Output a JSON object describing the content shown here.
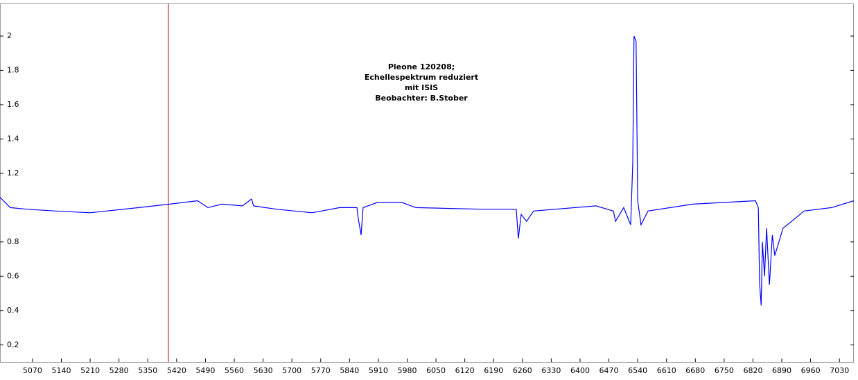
{
  "chart_data": {
    "type": "line",
    "annotation": [
      "Pleone 120208;",
      "Echellespektrum reduziert",
      "mit ISIS",
      "Beobachter: B.Stober"
    ],
    "x": [
      4991,
      5016,
      5058,
      5126,
      5210,
      5328,
      5403,
      5471,
      5496,
      5530,
      5580,
      5602,
      5607,
      5664,
      5749,
      5816,
      5858,
      5861,
      5868,
      5873,
      5908,
      5967,
      6001,
      6169,
      6245,
      6250,
      6257,
      6270,
      6287,
      6439,
      6481,
      6486,
      6506,
      6523,
      6528,
      6531,
      6536,
      6540,
      6548,
      6565,
      6674,
      6826,
      6833,
      6836,
      6840,
      6843,
      6848,
      6853,
      6860,
      6867,
      6873,
      6893,
      6919,
      6944,
      7011,
      7065
    ],
    "series": [
      {
        "name": "Pleone",
        "color": "#0000ff",
        "values": [
          1.06,
          1.0,
          0.99,
          0.98,
          0.97,
          1.0,
          1.02,
          1.04,
          1.0,
          1.02,
          1.01,
          1.05,
          1.01,
          0.99,
          0.97,
          1.0,
          1.0,
          0.94,
          0.84,
          1.0,
          1.03,
          1.03,
          1.0,
          0.99,
          0.99,
          0.82,
          0.96,
          0.92,
          0.98,
          1.01,
          0.98,
          0.92,
          1.0,
          0.9,
          1.26,
          2.0,
          1.97,
          1.04,
          0.9,
          0.98,
          1.02,
          1.04,
          1.0,
          0.56,
          0.43,
          0.8,
          0.6,
          0.88,
          0.55,
          0.84,
          0.72,
          0.88,
          0.93,
          0.98,
          1.0,
          1.04
        ]
      }
    ],
    "cursor_x": 5400,
    "cursor_color": "#c00000",
    "xlim": [
      4991,
      7065
    ],
    "xticks": [
      5070,
      5140,
      5210,
      5280,
      5350,
      5420,
      5490,
      5560,
      5630,
      5700,
      5770,
      5840,
      5910,
      5980,
      6050,
      6120,
      6190,
      6260,
      6330,
      6400,
      6470,
      6540,
      6610,
      6680,
      6750,
      6820,
      6890,
      6960,
      7030
    ],
    "ylim": [
      0.1,
      2.19
    ],
    "yticks": [
      0.2,
      0.4,
      0.6,
      0.8,
      1.2,
      1.4,
      1.6,
      1.8,
      2
    ]
  }
}
